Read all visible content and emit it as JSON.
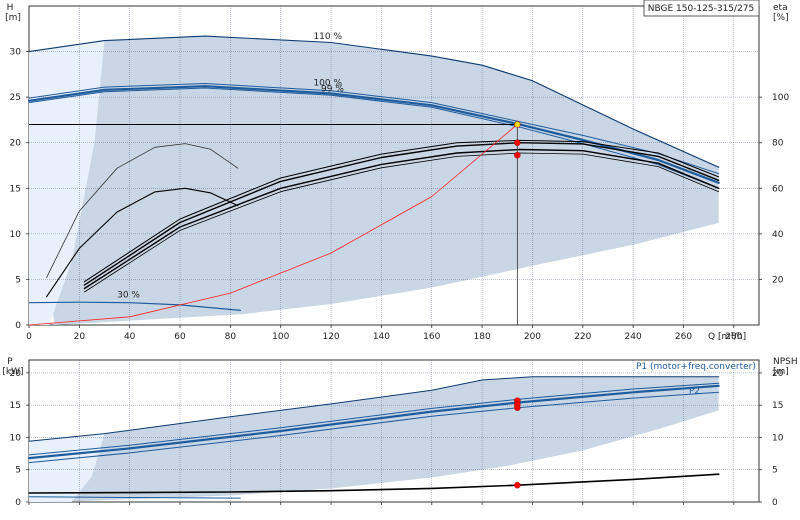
{
  "colors": {
    "envelope_fill": "#c9d6e5",
    "low_region_fill": "#e8f1fb",
    "curve_dark_blue": "#0b3a70",
    "curve_blue": "#1f5c9c",
    "system_curve": "#ff2020",
    "duty_point": "#ff0000",
    "duty_point_top": "#ffd800",
    "efficiency_curve": "#000000",
    "grid": "#1c2a5c"
  },
  "chart_data": [
    {
      "type": "line",
      "title": "NBGE 150-125-315/275",
      "ylabel_top": "H",
      "ylabel_bottom": "[m]",
      "y2label_top": "eta",
      "y2label_bottom": "[%]",
      "xlabel": "Q [m³/h]",
      "xlim": [
        0,
        290
      ],
      "ylim": [
        0,
        35
      ],
      "y2lim": [
        0,
        140
      ],
      "x_ticks": [
        0,
        20,
        40,
        60,
        80,
        100,
        120,
        140,
        160,
        180,
        200,
        220,
        240,
        260,
        280
      ],
      "x_tick_labels": [
        "0",
        "20",
        "40",
        "60",
        "80",
        "100",
        "120",
        "140",
        "160",
        "180",
        "200",
        "220",
        "240",
        "260",
        "280"
      ],
      "y_ticks": [
        0,
        5,
        10,
        15,
        20,
        25,
        30
      ],
      "y_tick_labels": [
        "0",
        "5",
        "10",
        "15",
        "20",
        "25",
        "30"
      ],
      "y2_ticks": [
        20,
        40,
        60,
        80,
        100
      ],
      "y2_tick_labels": [
        "20",
        "40",
        "60",
        "80",
        "100"
      ],
      "grid": true,
      "envelope": {
        "upper": [
          [
            0,
            30
          ],
          [
            30,
            31.2
          ],
          [
            70,
            31.7
          ],
          [
            120,
            31.0
          ],
          [
            160,
            29.5
          ],
          [
            180,
            28.5
          ],
          [
            200,
            26.8
          ],
          [
            240,
            21.5
          ],
          [
            274,
            17.3
          ]
        ],
        "lower": [
          [
            274,
            11.2
          ],
          [
            240,
            8.8
          ],
          [
            200,
            6.5
          ],
          [
            160,
            4.1
          ],
          [
            120,
            2.3
          ],
          [
            85,
            1.2
          ],
          [
            10,
            0
          ]
        ],
        "low_region": [
          [
            0,
            30
          ],
          [
            30,
            31.2
          ],
          [
            26,
            20
          ],
          [
            17,
            7
          ],
          [
            8,
            0
          ],
          [
            0,
            0
          ]
        ]
      },
      "series": [
        {
          "name": "110 %",
          "axis": "H",
          "color": "#0b3a70",
          "width": 1.1,
          "points": [
            [
              0,
              30.0
            ],
            [
              30,
              31.2
            ],
            [
              70,
              31.7
            ],
            [
              120,
              31.0
            ],
            [
              160,
              29.5
            ],
            [
              180,
              28.5
            ],
            [
              200,
              26.8
            ],
            [
              240,
              21.5
            ],
            [
              274,
              17.3
            ]
          ]
        },
        {
          "name": "100 %",
          "axis": "H",
          "color": "#1f5c9c",
          "width": 2.2,
          "points": [
            [
              0,
              24.6
            ],
            [
              30,
              25.8
            ],
            [
              70,
              26.2
            ],
            [
              120,
              25.4
            ],
            [
              160,
              24.1
            ],
            [
              195,
              22.0
            ],
            [
              220,
              20.3
            ],
            [
              250,
              18.1
            ],
            [
              274,
              15.6
            ]
          ]
        },
        {
          "name": "",
          "axis": "H",
          "color": "#1f5c9c",
          "width": 1.0,
          "points": [
            [
              0,
              24.9
            ],
            [
              30,
              26.1
            ],
            [
              70,
              26.5
            ],
            [
              120,
              25.7
            ],
            [
              160,
              24.4
            ],
            [
              195,
              22.3
            ],
            [
              220,
              20.8
            ],
            [
              250,
              18.8
            ],
            [
              274,
              16.6
            ]
          ]
        },
        {
          "name": "",
          "axis": "H",
          "color": "#1f5c9c",
          "width": 1.0,
          "points": [
            [
              0,
              24.4
            ],
            [
              30,
              25.6
            ],
            [
              70,
              26.0
            ],
            [
              120,
              25.2
            ],
            [
              160,
              23.9
            ],
            [
              195,
              21.7
            ],
            [
              220,
              19.9
            ],
            [
              250,
              17.6
            ],
            [
              274,
              15.0
            ]
          ]
        },
        {
          "name": "30 %",
          "axis": "H",
          "color": "#1f5c9c",
          "width": 1.2,
          "points": [
            [
              0,
              2.45
            ],
            [
              20,
              2.5
            ],
            [
              40,
              2.45
            ],
            [
              60,
              2.2
            ],
            [
              84,
              1.6
            ]
          ]
        },
        {
          "name": "",
          "axis": "H",
          "color": "#333333",
          "width": 0.8,
          "points": [
            [
              7,
              5.2
            ],
            [
              20,
              12.5
            ],
            [
              35,
              17.2
            ],
            [
              50,
              19.5
            ],
            [
              62,
              19.9
            ],
            [
              72,
              19.3
            ],
            [
              83,
              17.2
            ]
          ]
        },
        {
          "name": "",
          "axis": "H",
          "color": "#000000",
          "width": 1.1,
          "points": [
            [
              7,
              3.1
            ],
            [
              20,
              8.4
            ],
            [
              35,
              12.4
            ],
            [
              50,
              14.6
            ],
            [
              62,
              15.0
            ],
            [
              72,
              14.5
            ],
            [
              83,
              13.1
            ]
          ]
        },
        {
          "name": "",
          "axis": "eta",
          "color": "#000000",
          "width": 1.4,
          "points": [
            [
              22,
              16
            ],
            [
              60,
              43
            ],
            [
              100,
              60
            ],
            [
              140,
              70.5
            ],
            [
              170,
              75.5
            ],
            [
              195,
              77
            ],
            [
              220,
              76.5
            ],
            [
              250,
              71
            ],
            [
              274,
              60
            ]
          ]
        },
        {
          "name": "",
          "axis": "eta",
          "color": "#000000",
          "width": 1.4,
          "points": [
            [
              22,
              17.5
            ],
            [
              60,
              45
            ],
            [
              100,
              63
            ],
            [
              140,
              73.5
            ],
            [
              170,
              78.5
            ],
            [
              195,
              80
            ],
            [
              220,
              79.5
            ],
            [
              250,
              74
            ],
            [
              274,
              63.5
            ]
          ]
        },
        {
          "name": "",
          "axis": "eta",
          "color": "#000000",
          "width": 1.0,
          "points": [
            [
              22,
              19
            ],
            [
              60,
              46.5
            ],
            [
              100,
              64.5
            ],
            [
              140,
              75
            ],
            [
              170,
              80
            ],
            [
              195,
              81
            ],
            [
              220,
              80.5
            ],
            [
              250,
              75.5
            ],
            [
              274,
              65
            ]
          ]
        },
        {
          "name": "",
          "axis": "eta",
          "color": "#000000",
          "width": 0.8,
          "points": [
            [
              22,
              14.5
            ],
            [
              60,
              41.5
            ],
            [
              100,
              58.5
            ],
            [
              140,
              69
            ],
            [
              170,
              74
            ],
            [
              195,
              75.5
            ],
            [
              220,
              75
            ],
            [
              250,
              69.5
            ],
            [
              274,
              58.5
            ]
          ]
        },
        {
          "name": "",
          "axis": "H",
          "color": "#ff2020",
          "width": 0.8,
          "points": [
            [
              0,
              0
            ],
            [
              40,
              0.9
            ],
            [
              80,
              3.5
            ],
            [
              120,
              7.9
            ],
            [
              160,
              14.1
            ],
            [
              194,
              22.0
            ]
          ]
        }
      ],
      "annotations": [
        {
          "text": "110 %",
          "x": 113,
          "y": 31.4
        },
        {
          "text": "100 %",
          "x": 113,
          "y": 26.3
        },
        {
          "text": "99 %",
          "x": 116,
          "y": 25.6
        },
        {
          "text": "30 %",
          "x": 35,
          "y": 3.0
        }
      ],
      "duty_point": {
        "Q": 194,
        "H": 22.0
      },
      "duty_markers": [
        {
          "axis": "H",
          "y": 22.0,
          "color": "#ffd800"
        },
        {
          "axis": "eta",
          "y": 80.0,
          "color": "#ff0000"
        },
        {
          "axis": "eta",
          "y": 74.5,
          "color": "#ff0000"
        }
      ]
    },
    {
      "type": "line",
      "ylabel_top": "P",
      "ylabel_bottom": "[kW]",
      "y2label_top": "NPSH",
      "y2label_bottom": "[m]",
      "xlim": [
        0,
        290
      ],
      "ylim": [
        0,
        22
      ],
      "y2lim": [
        0,
        22
      ],
      "x_ticks": [
        0,
        20,
        40,
        60,
        80,
        100,
        120,
        140,
        160,
        180,
        200,
        220,
        240,
        260,
        280
      ],
      "y_ticks": [
        0,
        5,
        10,
        15,
        20
      ],
      "y_tick_labels": [
        "0",
        "5",
        "10",
        "15",
        "20"
      ],
      "y2_ticks": [
        0,
        5,
        10,
        15,
        20
      ],
      "y2_tick_labels": [
        "0",
        "5",
        "10",
        "15",
        "20"
      ],
      "grid": true,
      "envelope": {
        "upper": [
          [
            0,
            9.4
          ],
          [
            30,
            10.6
          ],
          [
            80,
            13.2
          ],
          [
            120,
            15.2
          ],
          [
            160,
            17.3
          ],
          [
            180,
            18.9
          ],
          [
            200,
            19.4
          ],
          [
            240,
            19.4
          ],
          [
            274,
            19.4
          ]
        ],
        "lower": [
          [
            274,
            14.2
          ],
          [
            250,
            11.3
          ],
          [
            220,
            8.0
          ],
          [
            190,
            5.6
          ],
          [
            160,
            3.8
          ],
          [
            120,
            2.1
          ],
          [
            80,
            1.0
          ],
          [
            10,
            0
          ]
        ],
        "low_region": [
          [
            0,
            9.4
          ],
          [
            30,
            10.6
          ],
          [
            25,
            4
          ],
          [
            17,
            0
          ],
          [
            0,
            0
          ]
        ]
      },
      "series": [
        {
          "name": "P1 (motor+freq.converter)",
          "axis": "P",
          "color": "#1f5c9c",
          "width": 2.2,
          "points": [
            [
              0,
              6.8
            ],
            [
              40,
              8.3
            ],
            [
              100,
              11.0
            ],
            [
              160,
              14.0
            ],
            [
              194,
              15.4
            ],
            [
              240,
              17.0
            ],
            [
              274,
              18.0
            ]
          ]
        },
        {
          "name": "",
          "axis": "P",
          "color": "#1f5c9c",
          "width": 1.0,
          "points": [
            [
              0,
              7.3
            ],
            [
              40,
              8.8
            ],
            [
              100,
              11.5
            ],
            [
              160,
              14.5
            ],
            [
              194,
              15.9
            ],
            [
              240,
              17.5
            ],
            [
              274,
              18.4
            ]
          ]
        },
        {
          "name": "P2",
          "axis": "P",
          "color": "#1f5c9c",
          "width": 1.0,
          "points": [
            [
              0,
              6.1
            ],
            [
              40,
              7.6
            ],
            [
              100,
              10.3
            ],
            [
              160,
              13.3
            ],
            [
              194,
              14.6
            ],
            [
              240,
              16.1
            ],
            [
              274,
              17.0
            ]
          ]
        },
        {
          "name": "",
          "axis": "P",
          "color": "#0b3a70",
          "width": 1.0,
          "points": [
            [
              0,
              9.4
            ],
            [
              30,
              10.6
            ],
            [
              80,
              13.2
            ],
            [
              120,
              15.2
            ],
            [
              160,
              17.3
            ],
            [
              180,
              18.9
            ],
            [
              200,
              19.4
            ],
            [
              274,
              19.4
            ]
          ]
        },
        {
          "name": "",
          "axis": "NPSH",
          "color": "#000000",
          "width": 1.6,
          "points": [
            [
              0,
              1.4
            ],
            [
              40,
              1.45
            ],
            [
              80,
              1.55
            ],
            [
              120,
              1.75
            ],
            [
              160,
              2.1
            ],
            [
              194,
              2.6
            ],
            [
              240,
              3.5
            ],
            [
              274,
              4.3
            ]
          ]
        },
        {
          "name": "",
          "axis": "P",
          "color": "#1f5c9c",
          "width": 1.0,
          "points": [
            [
              0,
              0.8
            ],
            [
              40,
              0.7
            ],
            [
              84,
              0.6
            ]
          ]
        }
      ],
      "duty_markers": [
        {
          "axis": "P",
          "y": 15.7,
          "color": "#ff0000"
        },
        {
          "axis": "P",
          "y": 15.1,
          "color": "#ff0000"
        },
        {
          "axis": "P",
          "y": 14.6,
          "color": "#ff0000"
        },
        {
          "axis": "NPSH",
          "y": 2.6,
          "color": "#ff0000"
        }
      ]
    }
  ]
}
